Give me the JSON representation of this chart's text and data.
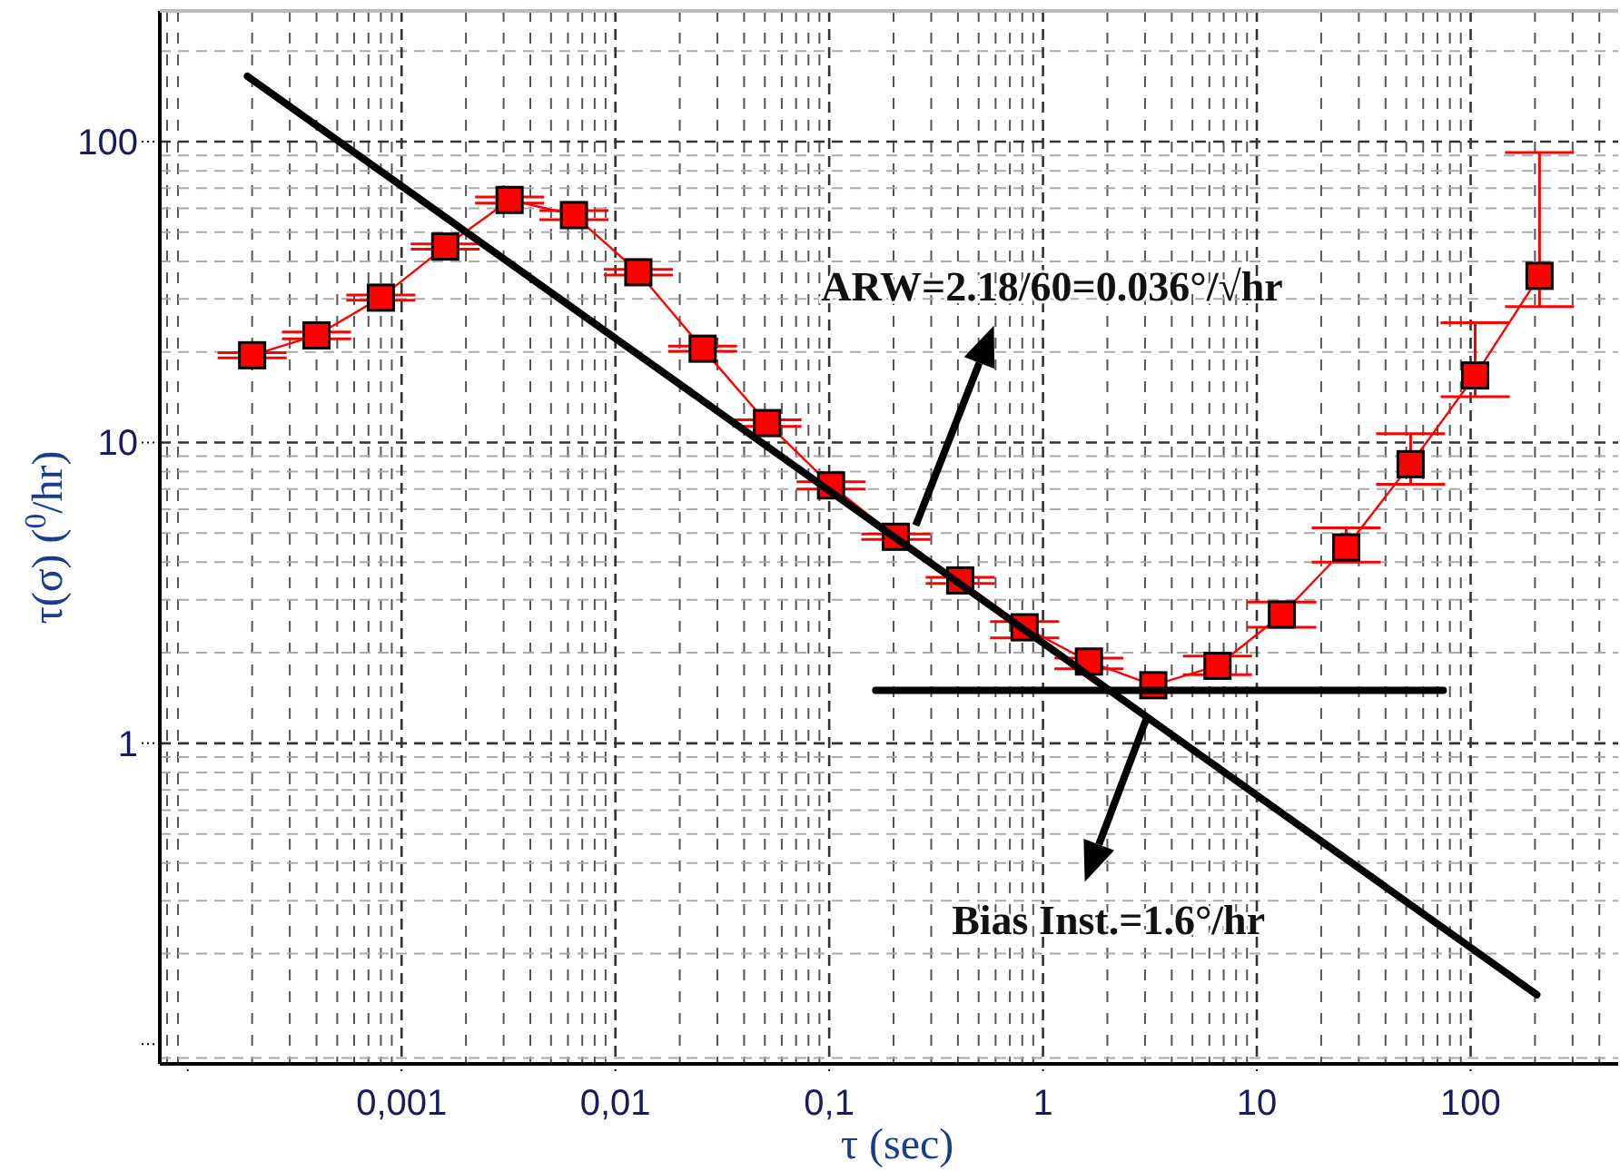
{
  "chart_data": {
    "type": "line",
    "xlabel": "τ (sec)",
    "ylabel": "τ(σ) ($^{0}$/hr)",
    "log": "xy",
    "grid": true,
    "marker": "square",
    "xlim": [
      7.4e-05,
      490
    ],
    "ylim": [
      0.086,
      272
    ],
    "xticks": [
      {
        "value": 0.0001,
        "label": null
      },
      {
        "value": 0.001,
        "label": "0,001"
      },
      {
        "value": 0.01,
        "label": "0,01"
      },
      {
        "value": 0.1,
        "label": "0,1"
      },
      1,
      10,
      100
    ],
    "yticks": [
      {
        "value": 0.1,
        "label": null
      },
      1,
      10,
      100
    ],
    "series": [
      {
        "color": "#ff0000",
        "line_style": "solid",
        "x": [
          0.0002,
          0.0004,
          0.0008,
          0.0016,
          0.0032,
          0.0064,
          0.0128,
          0.0256,
          0.0512,
          0.102,
          0.205,
          0.41,
          0.82,
          1.64,
          3.28,
          6.55,
          13.1,
          26.2,
          52.4,
          105,
          210
        ],
        "values": [
          19.5,
          22.7,
          30.3,
          44.8,
          64,
          57,
          36.8,
          20.5,
          11.6,
          7.2,
          4.86,
          3.48,
          2.43,
          1.87,
          1.56,
          1.81,
          2.68,
          4.48,
          8.47,
          16.7,
          35.8
        ],
        "errors": [
          0.4,
          0.6,
          0.6,
          0.9,
          1.5,
          2,
          0.8,
          0.4,
          0.3,
          0.2,
          0.1,
          0.08,
          [
            2.24,
            2.54
          ],
          [
            1.77,
            1.92
          ],
          null,
          [
            1.69,
            1.95
          ],
          [
            2.43,
            2.95
          ],
          [
            4.0,
            5.2
          ],
          [
            7.26,
            10.7
          ],
          [
            14.2,
            25
          ],
          [
            28.3,
            92
          ]
        ]
      },
      {
        "type": "line",
        "color": "#000000",
        "marker": "none",
        "line_style": "solid",
        "x": [
          0.00019,
          204
        ],
        "values": [
          165,
          0.146
        ]
      },
      {
        "type": "line",
        "color": "#000000",
        "marker": "none",
        "line_style": "solid",
        "x": [
          0.165,
          74.5
        ],
        "values": [
          1.5,
          1.5
        ]
      }
    ],
    "annotations": [
      {
        "text": "ARW=2.18/60=0.036°/√hr",
        "x": 0.254,
        "y": 5.3
      },
      {
        "text": "Bias Inst.=1.6°/hr",
        "x": 3.05,
        "y": 1.21
      }
    ]
  }
}
